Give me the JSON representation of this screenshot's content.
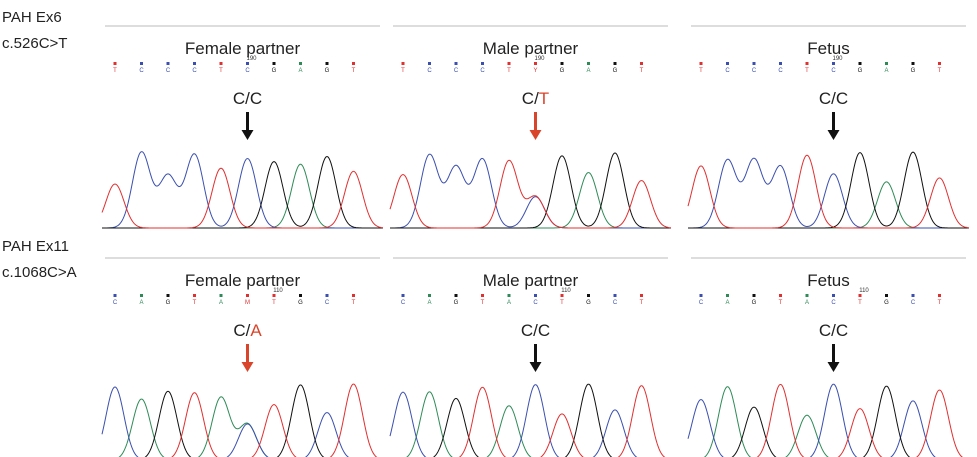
{
  "rows": [
    {
      "gene": "PAH Ex6",
      "mutation": "c.526C>T",
      "position": "190",
      "panels": [
        {
          "title": "Female partner",
          "bases": [
            "T",
            "C",
            "C",
            "C",
            "T",
            "C",
            "G",
            "A",
            "G",
            "T"
          ],
          "genotype_prefix": "C/",
          "genotype_suffix": "C",
          "variant": false
        },
        {
          "title": "Male partner",
          "bases": [
            "T",
            "C",
            "C",
            "C",
            "T",
            "Y",
            "G",
            "A",
            "G",
            "T"
          ],
          "genotype_prefix": "C/",
          "genotype_suffix": "T",
          "variant": true
        },
        {
          "title": "Fetus",
          "bases": [
            "T",
            "C",
            "C",
            "C",
            "T",
            "C",
            "G",
            "A",
            "G",
            "T"
          ],
          "genotype_prefix": "C/",
          "genotype_suffix": "C",
          "variant": false
        }
      ]
    },
    {
      "gene": "PAH Ex11",
      "mutation": "c.1068C>A",
      "position": "110",
      "panels": [
        {
          "title": "Female partner",
          "bases": [
            "C",
            "A",
            "G",
            "T",
            "A",
            "M",
            "T",
            "G",
            "C",
            "T"
          ],
          "genotype_prefix": "C/",
          "genotype_suffix": "A",
          "variant": true
        },
        {
          "title": "Male partner",
          "bases": [
            "C",
            "A",
            "G",
            "T",
            "A",
            "C",
            "T",
            "G",
            "C",
            "T"
          ],
          "genotype_prefix": "C/",
          "genotype_suffix": "C",
          "variant": false
        },
        {
          "title": "Fetus",
          "bases": [
            "C",
            "A",
            "G",
            "T",
            "A",
            "C",
            "T",
            "G",
            "C",
            "T"
          ],
          "genotype_prefix": "C/",
          "genotype_suffix": "C",
          "variant": false
        }
      ]
    }
  ]
}
